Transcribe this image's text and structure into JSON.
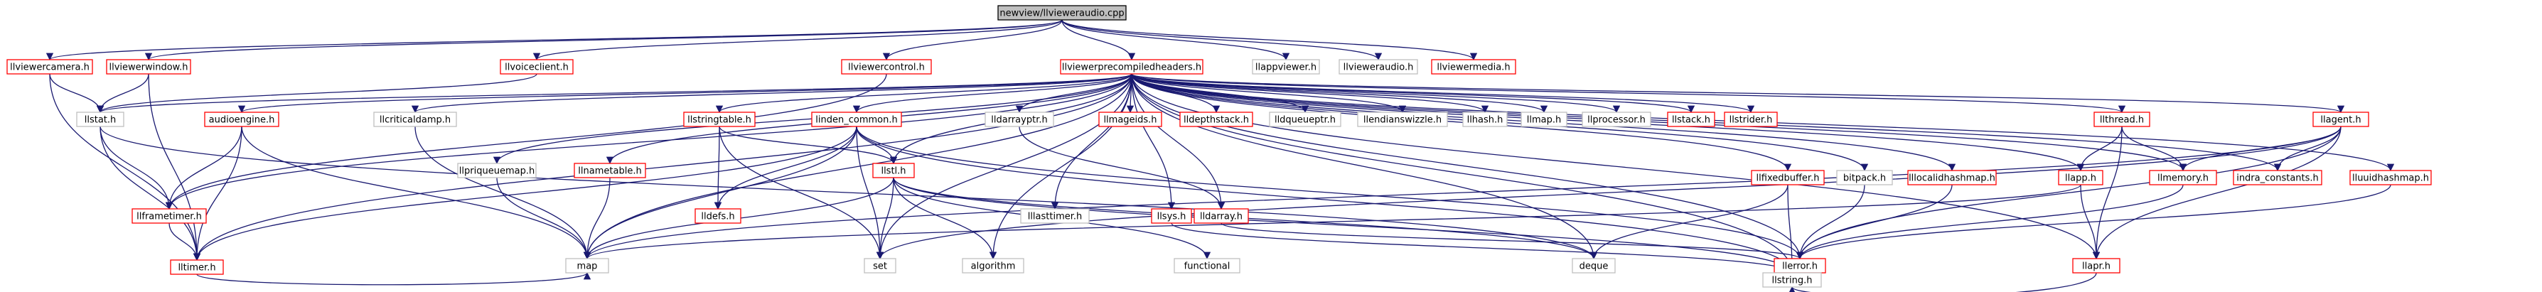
{
  "colors": {
    "edge": "#191970",
    "border_linked": "#ff0000",
    "border_plain": "#bfbfbf",
    "root_fill": "#bfbfbf",
    "root_border": "#000000",
    "text": "#000000"
  },
  "graph": {
    "nodes": [
      {
        "id": "root",
        "label": "newview/llvieweraudio.cpp",
        "kind": "root"
      },
      {
        "id": "llviewercamera",
        "label": "llviewercamera.h",
        "kind": "linked"
      },
      {
        "id": "llviewerwindow",
        "label": "llviewerwindow.h",
        "kind": "linked"
      },
      {
        "id": "llvoiceclient",
        "label": "llvoiceclient.h",
        "kind": "linked"
      },
      {
        "id": "llviewercontrol",
        "label": "llviewercontrol.h",
        "kind": "linked"
      },
      {
        "id": "llviewerprecompiledheaders",
        "label": "llviewerprecompiledheaders.h",
        "kind": "linked"
      },
      {
        "id": "llappviewer",
        "label": "llappviewer.h",
        "kind": "plain"
      },
      {
        "id": "llvieweraudio",
        "label": "llvieweraudio.h",
        "kind": "plain"
      },
      {
        "id": "llviewermedia",
        "label": "llviewermedia.h",
        "kind": "linked"
      },
      {
        "id": "llstat",
        "label": "llstat.h",
        "kind": "plain"
      },
      {
        "id": "audioengine",
        "label": "audioengine.h",
        "kind": "linked"
      },
      {
        "id": "llcriticaldamp",
        "label": "llcriticaldamp.h",
        "kind": "plain"
      },
      {
        "id": "llpriqueuemap",
        "label": "llpriqueuemap.h",
        "kind": "plain"
      },
      {
        "id": "llnametable",
        "label": "llnametable.h",
        "kind": "linked"
      },
      {
        "id": "llstringtable",
        "label": "llstringtable.h",
        "kind": "linked"
      },
      {
        "id": "lldefs",
        "label": "lldefs.h",
        "kind": "linked"
      },
      {
        "id": "llindencommon",
        "label": "linden_common.h",
        "kind": "linked"
      },
      {
        "id": "llstl",
        "label": "llstl.h",
        "kind": "linked"
      },
      {
        "id": "lldarrayptr",
        "label": "lldarrayptr.h",
        "kind": "plain"
      },
      {
        "id": "lllasttimer",
        "label": "lllasttimer.h",
        "kind": "plain"
      },
      {
        "id": "llmageids",
        "label": "llmageids.h",
        "kind": "linked"
      },
      {
        "id": "llsys",
        "label": "llsys.h",
        "kind": "linked"
      },
      {
        "id": "lldarray",
        "label": "lldarray.h",
        "kind": "linked"
      },
      {
        "id": "lldepthstack",
        "label": "lldepthstack.h",
        "kind": "linked"
      },
      {
        "id": "lldqueueptr",
        "label": "lldqueueptr.h",
        "kind": "plain"
      },
      {
        "id": "llendianswizzle",
        "label": "llendianswizzle.h",
        "kind": "plain"
      },
      {
        "id": "llhash",
        "label": "llhash.h",
        "kind": "plain"
      },
      {
        "id": "llmap",
        "label": "llmap.h",
        "kind": "plain"
      },
      {
        "id": "llprocessor",
        "label": "llprocessor.h",
        "kind": "plain"
      },
      {
        "id": "llstack",
        "label": "llstack.h",
        "kind": "linked"
      },
      {
        "id": "llstrider",
        "label": "llstrider.h",
        "kind": "linked"
      },
      {
        "id": "llfixedbuffer",
        "label": "llfixedbuffer.h",
        "kind": "linked"
      },
      {
        "id": "bitpack",
        "label": "bitpack.h",
        "kind": "plain"
      },
      {
        "id": "lllocalidhashmap",
        "label": "lllocalidhashmap.h",
        "kind": "linked"
      },
      {
        "id": "llapp",
        "label": "llapp.h",
        "kind": "linked"
      },
      {
        "id": "llthread",
        "label": "llthread.h",
        "kind": "linked"
      },
      {
        "id": "llmemory",
        "label": "llmemory.h",
        "kind": "linked"
      },
      {
        "id": "llagent",
        "label": "llagent.h",
        "kind": "linked"
      },
      {
        "id": "indraconstants",
        "label": "indra_constants.h",
        "kind": "linked"
      },
      {
        "id": "lluuidhashmap",
        "label": "lluuidhashmap.h",
        "kind": "linked"
      },
      {
        "id": "llframetimer",
        "label": "llframetimer.h",
        "kind": "linked"
      },
      {
        "id": "lltimer",
        "label": "lltimer.h",
        "kind": "linked"
      },
      {
        "id": "map",
        "label": "map",
        "kind": "plain"
      },
      {
        "id": "set",
        "label": "set",
        "kind": "plain"
      },
      {
        "id": "algorithm",
        "label": "algorithm",
        "kind": "plain"
      },
      {
        "id": "functional",
        "label": "functional",
        "kind": "plain"
      },
      {
        "id": "deque",
        "label": "deque",
        "kind": "plain"
      },
      {
        "id": "llerror",
        "label": "llerror.h",
        "kind": "linked"
      },
      {
        "id": "llapr",
        "label": "llapr.h",
        "kind": "linked"
      },
      {
        "id": "llstring",
        "label": "llstring.h",
        "kind": "plain"
      }
    ],
    "edges": [
      [
        "root",
        "llviewercamera"
      ],
      [
        "root",
        "llviewerwindow"
      ],
      [
        "root",
        "llvoiceclient"
      ],
      [
        "root",
        "llviewercontrol"
      ],
      [
        "root",
        "llviewerprecompiledheaders"
      ],
      [
        "root",
        "llappviewer"
      ],
      [
        "root",
        "llvieweraudio"
      ],
      [
        "root",
        "llviewermedia"
      ],
      [
        "llviewercamera",
        "llstat"
      ],
      [
        "llviewercamera",
        "lltimer"
      ],
      [
        "llviewerwindow",
        "llstat"
      ],
      [
        "llviewerwindow",
        "lltimer"
      ],
      [
        "llvoiceclient",
        "llstat"
      ],
      [
        "llviewercontrol",
        "llframetimer"
      ],
      [
        "llviewerprecompiledheaders",
        "llstat"
      ],
      [
        "llviewerprecompiledheaders",
        "audioengine"
      ],
      [
        "llviewerprecompiledheaders",
        "llcriticaldamp"
      ],
      [
        "llviewerprecompiledheaders",
        "llpriqueuemap"
      ],
      [
        "llviewerprecompiledheaders",
        "llnametable"
      ],
      [
        "llviewerprecompiledheaders",
        "llstringtable"
      ],
      [
        "llviewerprecompiledheaders",
        "llindencommon"
      ],
      [
        "llviewerprecompiledheaders",
        "lldarrayptr"
      ],
      [
        "llviewerprecompiledheaders",
        "lllasttimer"
      ],
      [
        "llviewerprecompiledheaders",
        "llmageids"
      ],
      [
        "llviewerprecompiledheaders",
        "llsys"
      ],
      [
        "llviewerprecompiledheaders",
        "lldarray"
      ],
      [
        "llviewerprecompiledheaders",
        "lldepthstack"
      ],
      [
        "llviewerprecompiledheaders",
        "lldqueueptr"
      ],
      [
        "llviewerprecompiledheaders",
        "llendianswizzle"
      ],
      [
        "llviewerprecompiledheaders",
        "llhash"
      ],
      [
        "llviewerprecompiledheaders",
        "llmap"
      ],
      [
        "llviewerprecompiledheaders",
        "llprocessor"
      ],
      [
        "llviewerprecompiledheaders",
        "llstack"
      ],
      [
        "llviewerprecompiledheaders",
        "llstrider"
      ],
      [
        "llviewerprecompiledheaders",
        "llfixedbuffer"
      ],
      [
        "llviewerprecompiledheaders",
        "bitpack"
      ],
      [
        "llviewerprecompiledheaders",
        "lllocalidhashmap"
      ],
      [
        "llviewerprecompiledheaders",
        "llapp"
      ],
      [
        "llviewerprecompiledheaders",
        "llthread"
      ],
      [
        "llviewerprecompiledheaders",
        "llmemory"
      ],
      [
        "llviewerprecompiledheaders",
        "llagent"
      ],
      [
        "llviewerprecompiledheaders",
        "indraconstants"
      ],
      [
        "llviewerprecompiledheaders",
        "lluuidhashmap"
      ],
      [
        "llviewerprecompiledheaders",
        "llframetimer"
      ],
      [
        "llviewerprecompiledheaders",
        "lltimer"
      ],
      [
        "llviewerprecompiledheaders",
        "map"
      ],
      [
        "llviewerprecompiledheaders",
        "set"
      ],
      [
        "llviewerprecompiledheaders",
        "algorithm"
      ],
      [
        "llviewerprecompiledheaders",
        "deque"
      ],
      [
        "llviewerprecompiledheaders",
        "llerror"
      ],
      [
        "llviewerprecompiledheaders",
        "llstring"
      ],
      [
        "llviewerprecompiledheaders",
        "llapr"
      ],
      [
        "llviewerprecompiledheaders",
        "llstl"
      ],
      [
        "llstat",
        "llframetimer"
      ],
      [
        "llstat",
        "lltimer"
      ],
      [
        "llstat",
        "deque"
      ],
      [
        "llframetimer",
        "lltimer"
      ],
      [
        "audioengine",
        "llframetimer"
      ],
      [
        "audioengine",
        "lltimer"
      ],
      [
        "audioengine",
        "map"
      ],
      [
        "llcriticaldamp",
        "map"
      ],
      [
        "llpriqueuemap",
        "map"
      ],
      [
        "llnametable",
        "map"
      ],
      [
        "llstringtable",
        "lldefs"
      ],
      [
        "llstringtable",
        "llstl"
      ],
      [
        "llstringtable",
        "set"
      ],
      [
        "llindencommon",
        "lldefs"
      ],
      [
        "llindencommon",
        "llstl"
      ],
      [
        "llindencommon",
        "lltimer"
      ],
      [
        "llindencommon",
        "map"
      ],
      [
        "llindencommon",
        "set"
      ],
      [
        "llindencommon",
        "llstring"
      ],
      [
        "llindencommon",
        "llerror"
      ],
      [
        "llstl",
        "map"
      ],
      [
        "llstl",
        "set"
      ],
      [
        "llstl",
        "algorithm"
      ],
      [
        "llstl",
        "functional"
      ],
      [
        "llstl",
        "deque"
      ],
      [
        "llstl",
        "llstring"
      ],
      [
        "lldarrayptr",
        "lldarray"
      ],
      [
        "lldarray",
        "llerror"
      ],
      [
        "llsys",
        "llstring"
      ],
      [
        "llfixedbuffer",
        "deque"
      ],
      [
        "llfixedbuffer",
        "llstring"
      ],
      [
        "bitpack",
        "llerror"
      ],
      [
        "lllocalidhashmap",
        "llerror"
      ],
      [
        "llapp",
        "llapr"
      ],
      [
        "llapp",
        "map"
      ],
      [
        "llthread",
        "llapp"
      ],
      [
        "llthread",
        "llapr"
      ],
      [
        "llthread",
        "llmemory"
      ],
      [
        "llmemory",
        "llerror"
      ],
      [
        "llagent",
        "llmemory"
      ],
      [
        "llagent",
        "indraconstants"
      ],
      [
        "llagent",
        "llapr"
      ],
      [
        "llagent",
        "llerror"
      ],
      [
        "llagent",
        "map"
      ],
      [
        "llagent",
        "set"
      ],
      [
        "lluuidhashmap",
        "llerror"
      ],
      [
        "llapr",
        "llstring"
      ],
      [
        "lltimer",
        "map"
      ]
    ]
  }
}
